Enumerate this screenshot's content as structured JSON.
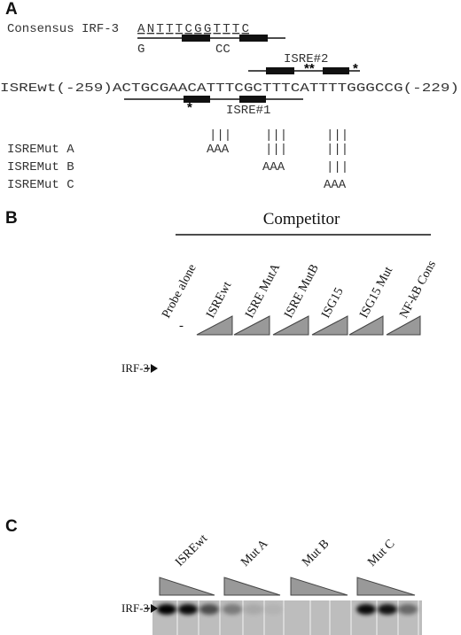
{
  "panel_a": {
    "label": "A",
    "consensus_name": "Consensus IRF-3",
    "consensus_sequence": "ANTTTCGGTTTC",
    "consensus_variant_1": "G",
    "consensus_variant_2": "CC",
    "isre2_label": "ISRE#2",
    "isre2_stars_left": "**",
    "isre2_star_right": "*",
    "wt_sequence": "ISREwt(-259)ACTGCGAACATTTCGCTTTCATTTTGGGCCG(-229)",
    "isre1_star": "*",
    "isre1_label": "ISRE#1",
    "position_marks": "|||",
    "mutants": [
      {
        "name": "ISREMut A",
        "substitution": "AAA"
      },
      {
        "name": "ISREMut B",
        "substitution": "AAA"
      },
      {
        "name": "ISREMut C",
        "substitution": "AAA"
      }
    ]
  },
  "panel_b": {
    "label": "B",
    "competitor_label": "Competitor",
    "lanes": [
      "Probe alone",
      "ISREwt",
      "ISRE MutA",
      "ISRE MutB",
      "ISG15",
      "ISG15 Mut",
      "NF-kB Cons"
    ],
    "probe_alone_mark": "-",
    "band_label": "IRF-3"
  },
  "panel_c": {
    "label": "C",
    "lanes": [
      "ISREwt",
      "Mut A",
      "Mut B",
      "Mut C"
    ],
    "band_label": "IRF-3"
  }
}
